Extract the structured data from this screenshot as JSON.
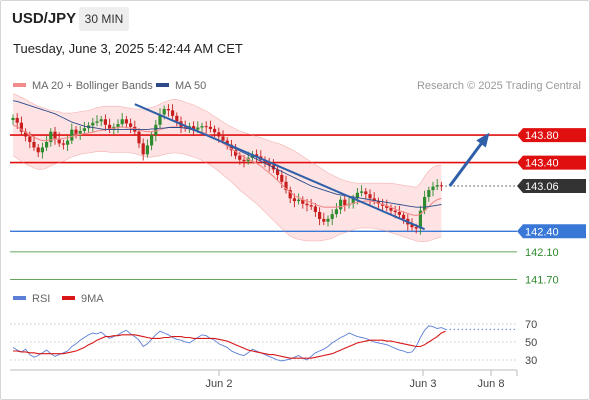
{
  "header": {
    "symbol": "USD/JPY",
    "timeframe": "30 MIN",
    "datetime": "Tuesday, June 3, 2025 5:42:44 AM CET"
  },
  "legend": {
    "bollinger_label": "MA 20 + Bollinger Bands",
    "ma50_label": "MA 50",
    "credit": "Research © 2025 Trading Central",
    "rsi_label": "RSI",
    "rsi_ma_label": "9MA"
  },
  "colors": {
    "bollinger": "#f28b8b",
    "band_fill": "#fde3e3",
    "ma50": "#2c4a8a",
    "resistance": "#e01010",
    "support": "#3a78d8",
    "target": "#2e8b2e",
    "last_price": "#333333",
    "candle_up": "#2e8b2e",
    "candle_down": "#c81e1e",
    "rsi": "#5b7fd6",
    "rsi_ma": "#d81818",
    "arrow": "#2f5fa8"
  },
  "chart_data": [
    {
      "type": "candlestick",
      "title": "USD/JPY",
      "timeframe": "30 MIN",
      "ylim": [
        141.4,
        144.5
      ],
      "x_ticks": [
        "Jun 2",
        "Jun 3",
        "Jun 8"
      ],
      "levels": [
        {
          "value": 143.8,
          "label": "143.80",
          "kind": "resistance"
        },
        {
          "value": 143.4,
          "label": "143.40",
          "kind": "resistance"
        },
        {
          "value": 143.06,
          "label": "143.06",
          "kind": "last"
        },
        {
          "value": 142.4,
          "label": "142.40",
          "kind": "support"
        },
        {
          "value": 142.1,
          "label": "142.10",
          "kind": "target"
        },
        {
          "value": 141.7,
          "label": "141.70",
          "kind": "target"
        }
      ],
      "close": [
        144.05,
        143.98,
        143.85,
        143.78,
        143.7,
        143.62,
        143.55,
        143.62,
        143.7,
        143.85,
        143.75,
        143.68,
        143.66,
        143.72,
        143.88,
        143.82,
        143.86,
        143.9,
        143.94,
        143.98,
        144.0,
        144.03,
        143.95,
        143.88,
        143.92,
        143.96,
        144.03,
        143.97,
        143.92,
        143.85,
        143.68,
        143.52,
        143.65,
        143.8,
        143.95,
        144.1,
        144.18,
        144.16,
        144.08,
        144.0,
        143.92,
        143.9,
        143.93,
        143.88,
        143.91,
        143.93,
        143.92,
        143.89,
        143.84,
        143.78,
        143.72,
        143.66,
        143.58,
        143.5,
        143.44,
        143.42,
        143.47,
        143.52,
        143.49,
        143.44,
        143.4,
        143.36,
        143.3,
        143.22,
        143.12,
        143.0,
        142.88,
        142.84,
        142.86,
        142.8,
        142.78,
        142.76,
        142.68,
        142.58,
        142.54,
        142.58,
        142.65,
        142.72,
        142.86,
        142.78,
        142.8,
        142.88,
        142.96,
        142.98,
        142.94,
        142.88,
        142.84,
        142.8,
        142.77,
        142.74,
        142.7,
        142.68,
        142.64,
        142.58,
        142.5,
        142.46,
        142.44,
        142.7,
        142.9,
        143.0,
        143.05,
        143.07,
        143.06
      ],
      "ma20": [
        143.95,
        143.92,
        143.88,
        143.84,
        143.8,
        143.77,
        143.74,
        143.72,
        143.72,
        143.73,
        143.74,
        143.74,
        143.75,
        143.76,
        143.78,
        143.8,
        143.81,
        143.82,
        143.83,
        143.84,
        143.86,
        143.87,
        143.88,
        143.89,
        143.9,
        143.91,
        143.92,
        143.91,
        143.9,
        143.89,
        143.88,
        143.86,
        143.85,
        143.85,
        143.86,
        143.88,
        143.9,
        143.91,
        143.92,
        143.92,
        143.91,
        143.9,
        143.89,
        143.88,
        143.86,
        143.84,
        143.82,
        143.79,
        143.76,
        143.72,
        143.68,
        143.64,
        143.6,
        143.56,
        143.52,
        143.48,
        143.45,
        143.42,
        143.39,
        143.35,
        143.3,
        143.25,
        143.2,
        143.14,
        143.08,
        143.02,
        142.97,
        142.92,
        142.89,
        142.86,
        142.84,
        142.82,
        142.79,
        142.77,
        142.75,
        142.75,
        142.75,
        142.75,
        142.76,
        142.77,
        142.79,
        142.81,
        142.82,
        142.83,
        142.84,
        142.84,
        142.83,
        142.81,
        142.79,
        142.77,
        142.75,
        142.72,
        142.7,
        142.68,
        142.66,
        142.64,
        142.63,
        142.65,
        142.7,
        142.76,
        142.82,
        142.86,
        142.88
      ],
      "bollinger_upper": [
        144.4,
        144.38,
        144.35,
        144.32,
        144.28,
        144.25,
        144.22,
        144.2,
        144.18,
        144.16,
        144.15,
        144.14,
        144.12,
        144.12,
        144.12,
        144.13,
        144.14,
        144.15,
        144.16,
        144.18,
        144.2,
        144.21,
        144.22,
        144.22,
        144.22,
        144.22,
        144.21,
        144.2,
        144.19,
        144.18,
        144.18,
        144.18,
        144.19,
        144.2,
        144.22,
        144.25,
        144.28,
        144.3,
        144.32,
        144.32,
        144.3,
        144.28,
        144.26,
        144.24,
        144.21,
        144.18,
        144.15,
        144.11,
        144.07,
        144.03,
        143.99,
        143.95,
        143.92,
        143.89,
        143.86,
        143.84,
        143.82,
        143.8,
        143.78,
        143.76,
        143.74,
        143.72,
        143.7,
        143.68,
        143.66,
        143.63,
        143.6,
        143.57,
        143.53,
        143.49,
        143.45,
        143.41,
        143.37,
        143.33,
        143.29,
        143.25,
        143.22,
        143.19,
        143.16,
        143.14,
        143.12,
        143.11,
        143.1,
        143.1,
        143.1,
        143.1,
        143.1,
        143.1,
        143.1,
        143.1,
        143.1,
        143.09,
        143.08,
        143.07,
        143.06,
        143.05,
        143.04,
        143.1,
        143.2,
        143.28,
        143.33,
        143.36,
        143.36
      ],
      "bollinger_lower": [
        143.5,
        143.46,
        143.42,
        143.38,
        143.35,
        143.32,
        143.3,
        143.3,
        143.32,
        143.35,
        143.38,
        143.4,
        143.42,
        143.45,
        143.48,
        143.5,
        143.52,
        143.53,
        143.54,
        143.55,
        143.56,
        143.56,
        143.56,
        143.55,
        143.55,
        143.55,
        143.55,
        143.55,
        143.54,
        143.53,
        143.51,
        143.49,
        143.48,
        143.48,
        143.49,
        143.5,
        143.52,
        143.53,
        143.54,
        143.54,
        143.53,
        143.52,
        143.5,
        143.48,
        143.46,
        143.43,
        143.4,
        143.36,
        143.32,
        143.27,
        143.22,
        143.17,
        143.12,
        143.06,
        143.0,
        142.95,
        142.9,
        142.85,
        142.8,
        142.74,
        142.68,
        142.62,
        142.56,
        142.5,
        142.44,
        142.38,
        142.33,
        142.3,
        142.28,
        142.27,
        142.26,
        142.26,
        142.26,
        142.26,
        142.27,
        142.28,
        142.3,
        142.33,
        142.36,
        142.38,
        142.4,
        142.42,
        142.44,
        142.45,
        142.45,
        142.45,
        142.44,
        142.43,
        142.42,
        142.4,
        142.38,
        142.36,
        142.34,
        142.32,
        142.3,
        142.28,
        142.26,
        142.25,
        142.25,
        142.26,
        142.28,
        142.3,
        142.32
      ],
      "ma50": [
        144.3,
        144.29,
        144.27,
        144.25,
        144.23,
        144.21,
        144.19,
        144.17,
        144.15,
        144.13,
        144.11,
        144.08,
        144.05,
        144.02,
        143.99,
        143.97,
        143.95,
        143.93,
        143.92,
        143.91,
        143.9,
        143.89,
        143.88,
        143.88,
        143.88,
        143.88,
        143.88,
        143.88,
        143.88,
        143.88,
        143.88,
        143.88,
        143.88,
        143.89,
        143.89,
        143.9,
        143.9,
        143.91,
        143.91,
        143.91,
        143.91,
        143.9,
        143.89,
        143.87,
        143.85,
        143.83,
        143.81,
        143.78,
        143.75,
        143.72,
        143.69,
        143.66,
        143.63,
        143.6,
        143.57,
        143.54,
        143.51,
        143.48,
        143.45,
        143.42,
        143.39,
        143.36,
        143.33,
        143.3,
        143.27,
        143.24,
        143.21,
        143.18,
        143.15,
        143.12,
        143.09,
        143.06,
        143.04,
        143.02,
        143.0,
        142.98,
        142.96,
        142.94,
        142.93,
        142.92,
        142.91,
        142.9,
        142.89,
        142.88,
        142.87,
        142.86,
        142.85,
        142.84,
        142.83,
        142.82,
        142.81,
        142.8,
        142.79,
        142.78,
        142.77,
        142.76,
        142.75,
        142.75,
        142.75,
        142.76,
        142.77,
        142.78,
        142.79
      ],
      "trendline": {
        "from": {
          "index": 29,
          "value": 144.25
        },
        "to": {
          "index": 98,
          "value": 142.43
        }
      },
      "forecast_arrow": {
        "from": {
          "index": 104,
          "value": 143.06
        },
        "to": {
          "index": 113,
          "value": 143.8
        }
      }
    },
    {
      "type": "line",
      "title": "RSI",
      "ylim": [
        10,
        90
      ],
      "y_ticks": [
        30,
        50,
        70
      ],
      "series": [
        {
          "name": "RSI",
          "values": [
            44,
            41,
            39,
            42,
            36,
            33,
            35,
            38,
            41,
            37,
            34,
            36,
            38,
            40,
            45,
            48,
            52,
            55,
            58,
            60,
            59,
            61,
            57,
            54,
            56,
            58,
            61,
            63,
            59,
            56,
            52,
            45,
            48,
            53,
            58,
            62,
            60,
            58,
            55,
            53,
            52,
            50,
            49,
            52,
            55,
            58,
            57,
            54,
            52,
            48,
            46,
            44,
            40,
            38,
            36,
            35,
            38,
            42,
            40,
            38,
            36,
            34,
            32,
            30,
            29,
            30,
            31,
            33,
            35,
            32,
            30,
            34,
            38,
            40,
            42,
            45,
            49,
            52,
            55,
            57,
            60,
            58,
            56,
            55,
            54,
            52,
            50,
            49,
            48,
            47,
            45,
            43,
            41,
            40,
            38,
            39,
            45,
            55,
            63,
            68,
            67,
            65,
            66,
            64
          ]
        },
        {
          "name": "9MA",
          "values": [
            40,
            40,
            39,
            39,
            38,
            38,
            37,
            37,
            37,
            37,
            37,
            37,
            37,
            38,
            39,
            40,
            42,
            44,
            47,
            49,
            52,
            54,
            56,
            56,
            57,
            57,
            58,
            58,
            58,
            58,
            57,
            56,
            55,
            54,
            54,
            54,
            55,
            55,
            56,
            56,
            56,
            55,
            55,
            54,
            54,
            54,
            54,
            54,
            54,
            53,
            52,
            51,
            49,
            47,
            45,
            43,
            41,
            40,
            39,
            38,
            37,
            36,
            36,
            35,
            34,
            33,
            32,
            32,
            32,
            32,
            32,
            32,
            33,
            34,
            35,
            36,
            37,
            39,
            41,
            43,
            45,
            47,
            49,
            50,
            51,
            52,
            52,
            52,
            52,
            51,
            51,
            50,
            49,
            48,
            47,
            46,
            45,
            45,
            47,
            50,
            53,
            56,
            60,
            62
          ]
        }
      ]
    }
  ]
}
